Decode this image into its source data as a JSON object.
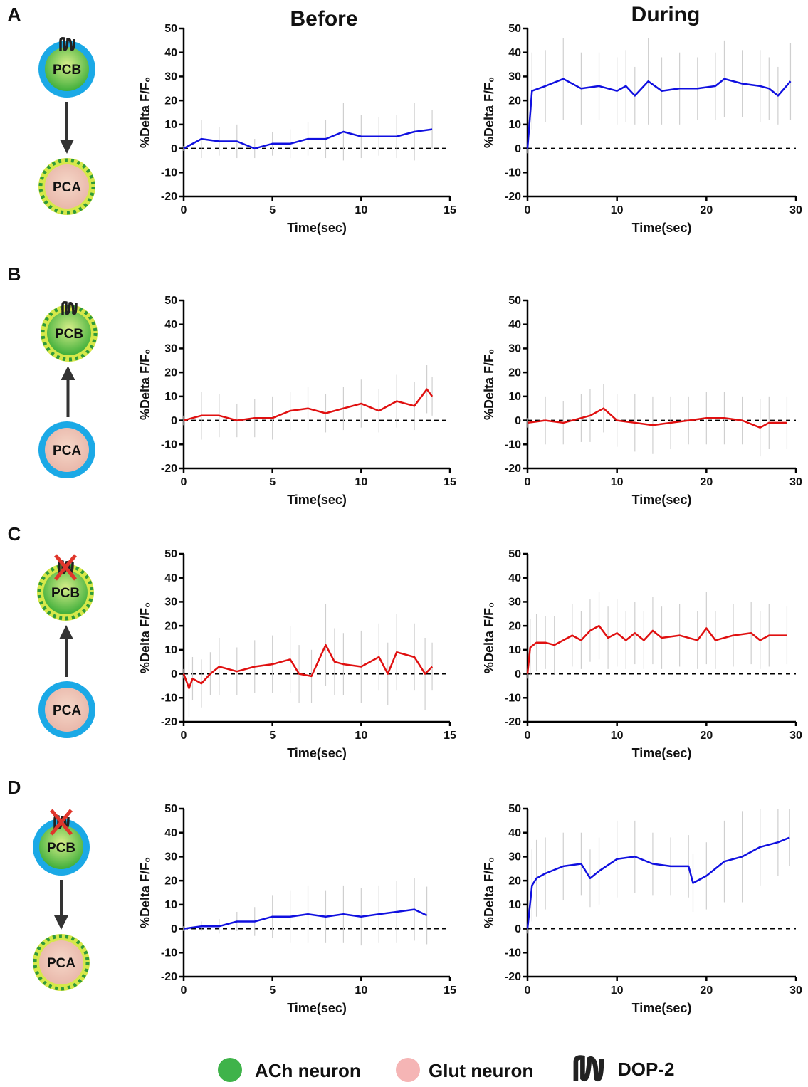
{
  "columns": [
    "Before",
    "During"
  ],
  "panels": [
    {
      "label": "A",
      "top": "PCB",
      "bottom": "PCA"
    },
    {
      "label": "B",
      "top": "PCB",
      "bottom": "PCA"
    },
    {
      "label": "C",
      "top": "PCB",
      "bottom": "PCA"
    },
    {
      "label": "D",
      "top": "PCB",
      "bottom": "PCA"
    }
  ],
  "legend": [
    "ACh neuron",
    "Glut neuron",
    "DOP-2"
  ],
  "chart_data": [
    {
      "type": "line",
      "xlabel": "Time(sec)",
      "ylabel": "%Delta F/F₀",
      "xlim": [
        0,
        15
      ],
      "xticks": [
        0,
        5,
        10,
        15
      ],
      "ylim": [
        -20,
        50
      ],
      "yticks": [
        -20,
        -10,
        0,
        10,
        20,
        30,
        40,
        50
      ],
      "hline": 0,
      "x": [
        0,
        1,
        2,
        3,
        4,
        5,
        6,
        7,
        8,
        9,
        10,
        11,
        12,
        13,
        14
      ],
      "series": [
        {
          "color": "#1010e0",
          "values": [
            0,
            4,
            3,
            3,
            0,
            2,
            2,
            4,
            4,
            7,
            5,
            5,
            5,
            7,
            8
          ],
          "errors": [
            1,
            8,
            6,
            7,
            4,
            5,
            6,
            7,
            8,
            12,
            9,
            8,
            9,
            12,
            8
          ]
        }
      ]
    },
    {
      "type": "line",
      "xlabel": "Time(sec)",
      "ylabel": "%Delta F/F₀",
      "xlim": [
        0,
        30
      ],
      "xticks": [
        0,
        10,
        20,
        30
      ],
      "ylim": [
        -20,
        50
      ],
      "yticks": [
        -20,
        -10,
        0,
        10,
        20,
        30,
        40,
        50
      ],
      "hline": 0,
      "x": [
        0,
        0.5,
        2,
        4,
        6,
        8,
        10,
        11,
        12,
        13.5,
        15,
        17,
        19,
        21,
        22,
        24,
        26,
        27,
        28,
        29.4
      ],
      "series": [
        {
          "color": "#1010e0",
          "values": [
            0,
            24,
            26,
            29,
            25,
            26,
            24,
            26,
            22,
            28,
            24,
            25,
            25,
            26,
            29,
            27,
            26,
            25,
            22,
            28
          ],
          "errors": [
            2,
            16,
            15,
            17,
            15,
            14,
            14,
            15,
            12,
            18,
            14,
            15,
            13,
            14,
            16,
            14,
            15,
            13,
            12,
            16
          ]
        }
      ]
    },
    {
      "type": "line",
      "xlabel": "Time(sec)",
      "ylabel": "%Delta F/F₀",
      "xlim": [
        0,
        15
      ],
      "xticks": [
        0,
        5,
        10,
        15
      ],
      "ylim": [
        -20,
        50
      ],
      "yticks": [
        -20,
        -10,
        0,
        10,
        20,
        30,
        40,
        50
      ],
      "hline": 0,
      "x": [
        0,
        1,
        2,
        3,
        4,
        5,
        6,
        7,
        8,
        9,
        10,
        11,
        12,
        13,
        13.7,
        14
      ],
      "series": [
        {
          "color": "#e01010",
          "values": [
            0,
            2,
            2,
            0,
            1,
            1,
            4,
            5,
            3,
            5,
            7,
            4,
            8,
            6,
            13,
            10
          ],
          "errors": [
            2,
            10,
            9,
            7,
            8,
            9,
            8,
            9,
            8,
            9,
            10,
            9,
            11,
            10,
            10,
            8
          ]
        }
      ]
    },
    {
      "type": "line",
      "xlabel": "Time(sec)",
      "ylabel": "%Delta F/F₀",
      "xlim": [
        0,
        30
      ],
      "xticks": [
        0,
        10,
        20,
        30
      ],
      "ylim": [
        -20,
        50
      ],
      "yticks": [
        -20,
        -10,
        0,
        10,
        20,
        30,
        40,
        50
      ],
      "hline": 0,
      "x": [
        0,
        2,
        4,
        6,
        7,
        8.5,
        10,
        12,
        14,
        16,
        18,
        20,
        22,
        24,
        26,
        27,
        29
      ],
      "series": [
        {
          "color": "#e01010",
          "values": [
            -1,
            0,
            -1,
            1,
            2,
            5,
            0,
            -1,
            -2,
            -1,
            0,
            1,
            1,
            0,
            -3,
            -1,
            -1
          ],
          "errors": [
            2,
            10,
            9,
            10,
            11,
            10,
            11,
            12,
            12,
            11,
            10,
            11,
            11,
            10,
            12,
            11,
            11
          ]
        }
      ]
    },
    {
      "type": "line",
      "xlabel": "Time(sec)",
      "ylabel": "%Delta F/F₀",
      "xlim": [
        0,
        15
      ],
      "xticks": [
        0,
        5,
        10,
        15
      ],
      "ylim": [
        -20,
        50
      ],
      "yticks": [
        -20,
        -10,
        0,
        10,
        20,
        30,
        40,
        50
      ],
      "hline": 0,
      "x": [
        0,
        0.3,
        0.5,
        1,
        1.5,
        2,
        3,
        4,
        5,
        6,
        6.5,
        7.2,
        8,
        8.5,
        9,
        10,
        11,
        11.5,
        12,
        13,
        13.6,
        14
      ],
      "series": [
        {
          "color": "#e01010",
          "values": [
            0,
            -6,
            -2,
            -4,
            0,
            3,
            1,
            3,
            4,
            6,
            0,
            -1,
            12,
            5,
            4,
            3,
            7,
            0,
            9,
            7,
            0,
            3
          ],
          "errors": [
            2,
            12,
            9,
            10,
            9,
            12,
            10,
            11,
            12,
            14,
            12,
            11,
            17,
            14,
            13,
            15,
            14,
            13,
            16,
            14,
            15,
            10
          ]
        }
      ]
    },
    {
      "type": "line",
      "xlabel": "Time(sec)",
      "ylabel": "%Delta F/F₀",
      "xlim": [
        0,
        30
      ],
      "xticks": [
        0,
        10,
        20,
        30
      ],
      "ylim": [
        -20,
        50
      ],
      "yticks": [
        -20,
        -10,
        0,
        10,
        20,
        30,
        40,
        50
      ],
      "hline": 0,
      "x": [
        0,
        0.3,
        1,
        2,
        3,
        5,
        6,
        7,
        8,
        9,
        10,
        11,
        12,
        13,
        14,
        15,
        17,
        19,
        20,
        21,
        23,
        25,
        26,
        27,
        29
      ],
      "series": [
        {
          "color": "#e01010",
          "values": [
            0,
            11,
            13,
            13,
            12,
            16,
            14,
            18,
            20,
            15,
            17,
            14,
            17,
            14,
            18,
            15,
            16,
            14,
            19,
            14,
            16,
            17,
            14,
            16,
            16
          ],
          "errors": [
            2,
            12,
            12,
            11,
            12,
            13,
            12,
            13,
            14,
            13,
            14,
            12,
            13,
            12,
            14,
            13,
            13,
            12,
            15,
            12,
            13,
            13,
            12,
            13,
            12
          ]
        }
      ]
    },
    {
      "type": "line",
      "xlabel": "Time(sec)",
      "ylabel": "%Delta F/F₀",
      "xlim": [
        0,
        15
      ],
      "xticks": [
        0,
        5,
        10,
        15
      ],
      "ylim": [
        -20,
        50
      ],
      "yticks": [
        -20,
        -10,
        0,
        10,
        20,
        30,
        40,
        50
      ],
      "hline": 0,
      "x": [
        0,
        1,
        2,
        3,
        4,
        5,
        6,
        7,
        8,
        9,
        10,
        11,
        12,
        13,
        13.7
      ],
      "series": [
        {
          "color": "#1010e0",
          "values": [
            0,
            1,
            1,
            3,
            3,
            5,
            5,
            6,
            5,
            6,
            5,
            6,
            7,
            8,
            5.5
          ],
          "errors": [
            1,
            2,
            3,
            4,
            6,
            9,
            11,
            12,
            11,
            12,
            12,
            12,
            13,
            13,
            12
          ]
        }
      ]
    },
    {
      "type": "line",
      "xlabel": "Time(sec)",
      "ylabel": "%Delta F/F₀",
      "xlim": [
        0,
        30
      ],
      "xticks": [
        0,
        10,
        20,
        30
      ],
      "ylim": [
        -20,
        50
      ],
      "yticks": [
        -20,
        -10,
        0,
        10,
        20,
        30,
        40,
        50
      ],
      "hline": 0,
      "x": [
        0,
        0.5,
        1,
        2,
        4,
        6,
        7,
        8,
        10,
        12,
        14,
        16,
        18,
        18.5,
        20,
        22,
        24,
        26,
        28,
        29.3
      ],
      "series": [
        {
          "color": "#1010e0",
          "values": [
            0,
            18,
            21,
            23,
            26,
            27,
            21,
            24,
            29,
            30,
            27,
            26,
            26,
            19,
            22,
            28,
            30,
            34,
            36,
            38
          ],
          "errors": [
            2,
            15,
            16,
            15,
            14,
            13,
            12,
            14,
            16,
            15,
            13,
            12,
            13,
            12,
            14,
            17,
            19,
            16,
            14,
            12
          ]
        }
      ]
    }
  ]
}
